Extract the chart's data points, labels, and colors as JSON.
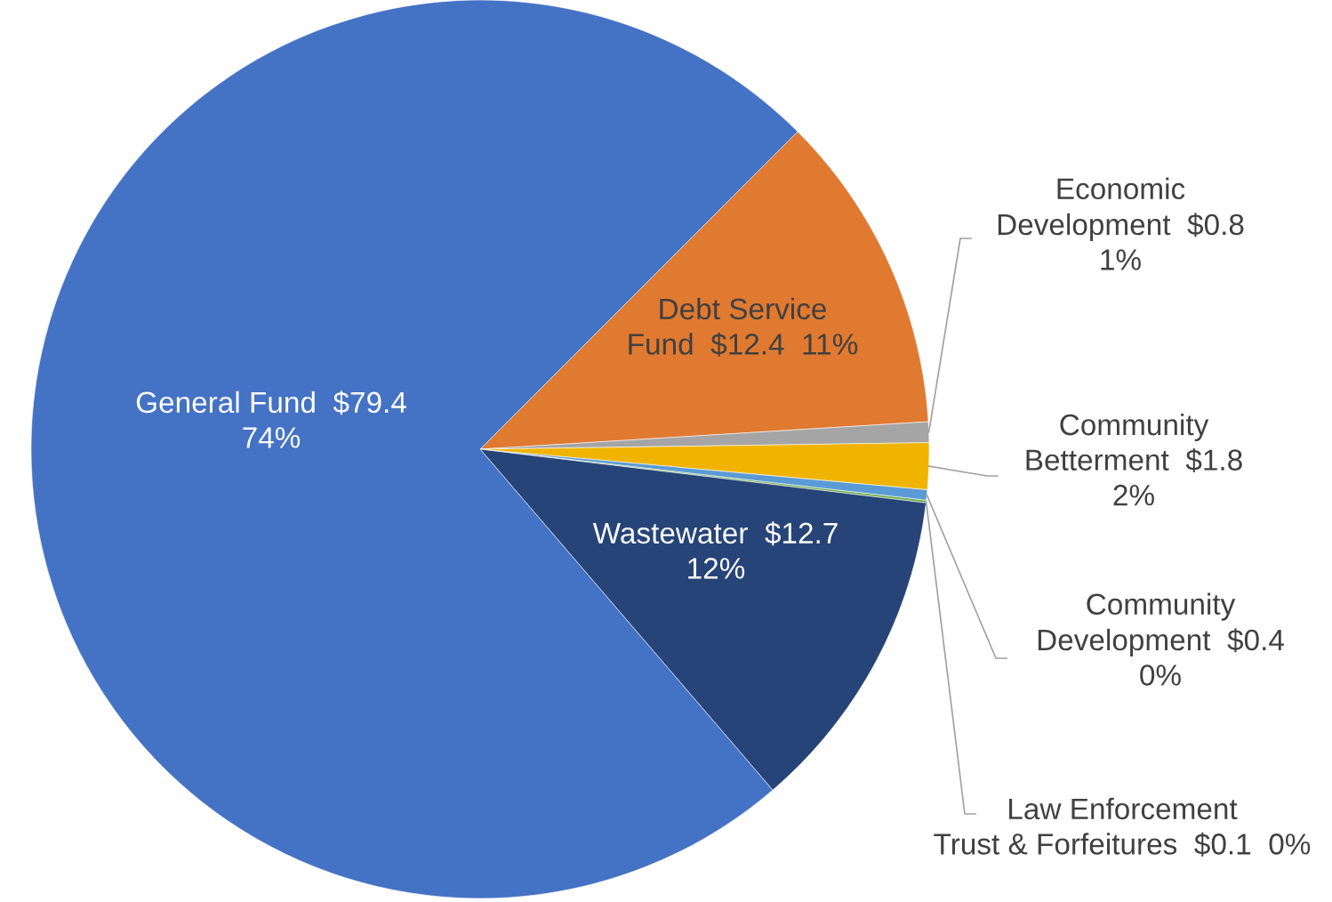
{
  "chart_data": {
    "type": "pie",
    "categories": [
      "Debt Service\nFund",
      "Economic\nDevelopment",
      "Community\nBetterment",
      "Community\nDevelopment",
      "Law Enforcement\nTrust & Forfeitures",
      "Wastewater",
      "General Fund"
    ],
    "values": [
      12.4,
      0.8,
      1.8,
      0.4,
      0.1,
      12.7,
      79.4
    ],
    "value_labels": [
      "$12.4  11%",
      "$0.8\n1%",
      "$1.8\n2%",
      "$0.4\n0%",
      "$0.1  0%",
      "$12.7\n12%",
      "$79.4\n74%"
    ],
    "colors": [
      "#e07a30",
      "#a5a5a5",
      "#f0b400",
      "#5b9bd5",
      "#70ad47",
      "#264478",
      "#4472c4"
    ],
    "legend": false
  }
}
